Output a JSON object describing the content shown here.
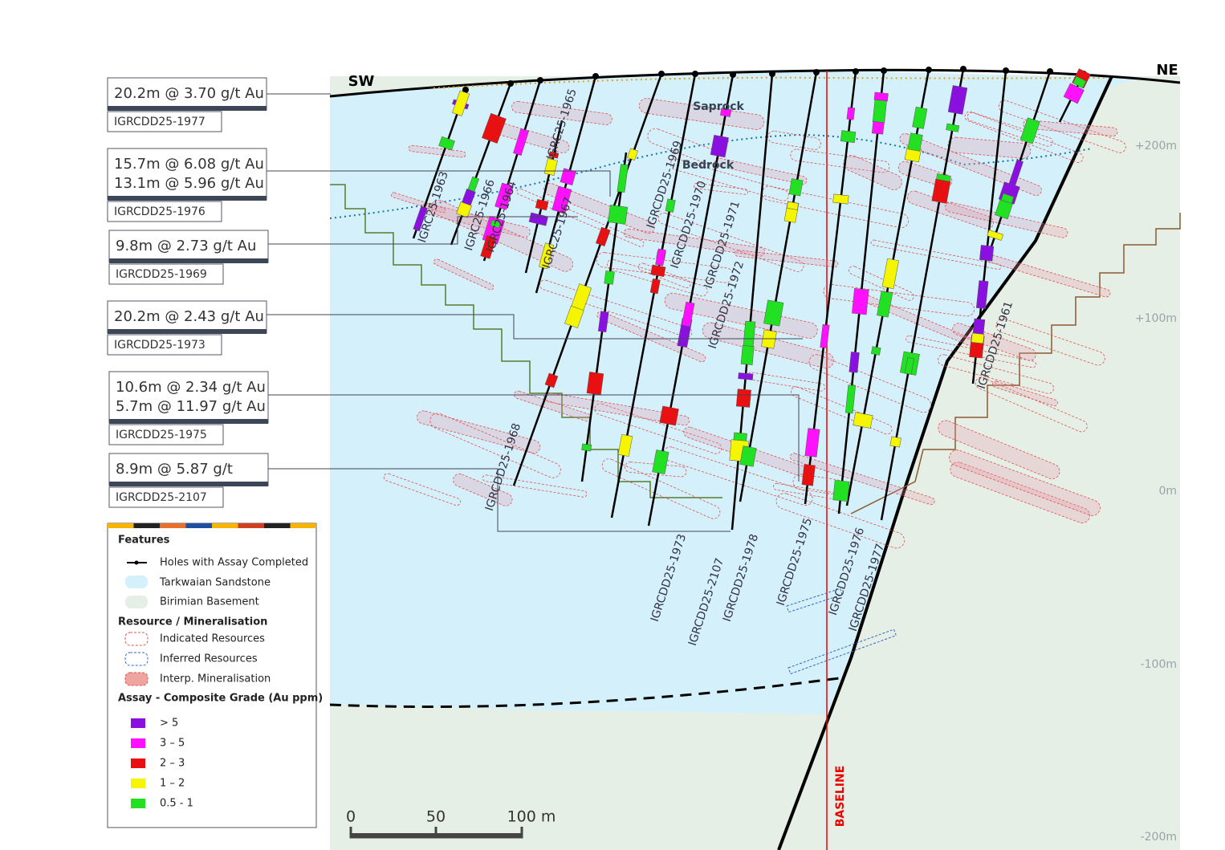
{
  "section": {
    "sw": "SW",
    "ne": "NE",
    "saprock": "Saprock",
    "bedrock": "Bedrock",
    "baseline": "BASELINE"
  },
  "elevations": [
    "+200m",
    "+100m",
    "0m",
    "-100m",
    "-200m"
  ],
  "scale_bar": [
    "0",
    "50",
    "100 m"
  ],
  "callouts": [
    {
      "intercepts": [
        "20.2m @ 3.70 g/t Au"
      ],
      "hole": "IGRCDD25-1977"
    },
    {
      "intercepts": [
        "15.7m @ 6.08 g/t Au",
        "13.1m @ 5.96 g/t Au"
      ],
      "hole": "IGRCDD25-1976"
    },
    {
      "intercepts": [
        "9.8m @ 2.73 g/t Au"
      ],
      "hole": "IGRCDD25-1969"
    },
    {
      "intercepts": [
        "20.2m @ 2.43 g/t Au"
      ],
      "hole": "IGRCDD25-1973"
    },
    {
      "intercepts": [
        "10.6m @ 2.34 g/t Au",
        "5.7m @ 11.97 g/t Au"
      ],
      "hole": "IGRCDD25-1975"
    },
    {
      "intercepts": [
        "8.9m @ 5.87 g/t"
      ],
      "hole": "IGRCDD25-2107"
    }
  ],
  "hole_labels": [
    "IGRC25-1963",
    "IGRC25-1966",
    "IGRC25-1964",
    "IGRC25-1965",
    "IGRC25-1967",
    "IGRCDD25-1969",
    "IGRCDD25-1970",
    "IGRCDD25-1971",
    "IGRCDD25-1972",
    "IGRCDD25-1961",
    "IGRCDD25-1968",
    "IGRCDD25-1973",
    "IGRCDD25-2107",
    "IGRCDD25-1978",
    "IGRCDD25-1975",
    "IGRCDD25-1976",
    "IGRCDD25-1977"
  ],
  "legend": {
    "features": {
      "title": "Features",
      "items": [
        "Holes with Assay Completed",
        "Tarkwaian Sandstone",
        "Birimian Basement"
      ]
    },
    "resource": {
      "title": "Resource / Mineralisation",
      "items": [
        "Indicated Resources",
        "Inferred Resources",
        "Interp. Mineralisation"
      ]
    },
    "assay": {
      "title": "Assay - Composite Grade (Au ppm)",
      "items": [
        "> 5",
        "3 – 5",
        "2 – 3",
        "1 – 2",
        "0.5 - 1"
      ]
    }
  }
}
